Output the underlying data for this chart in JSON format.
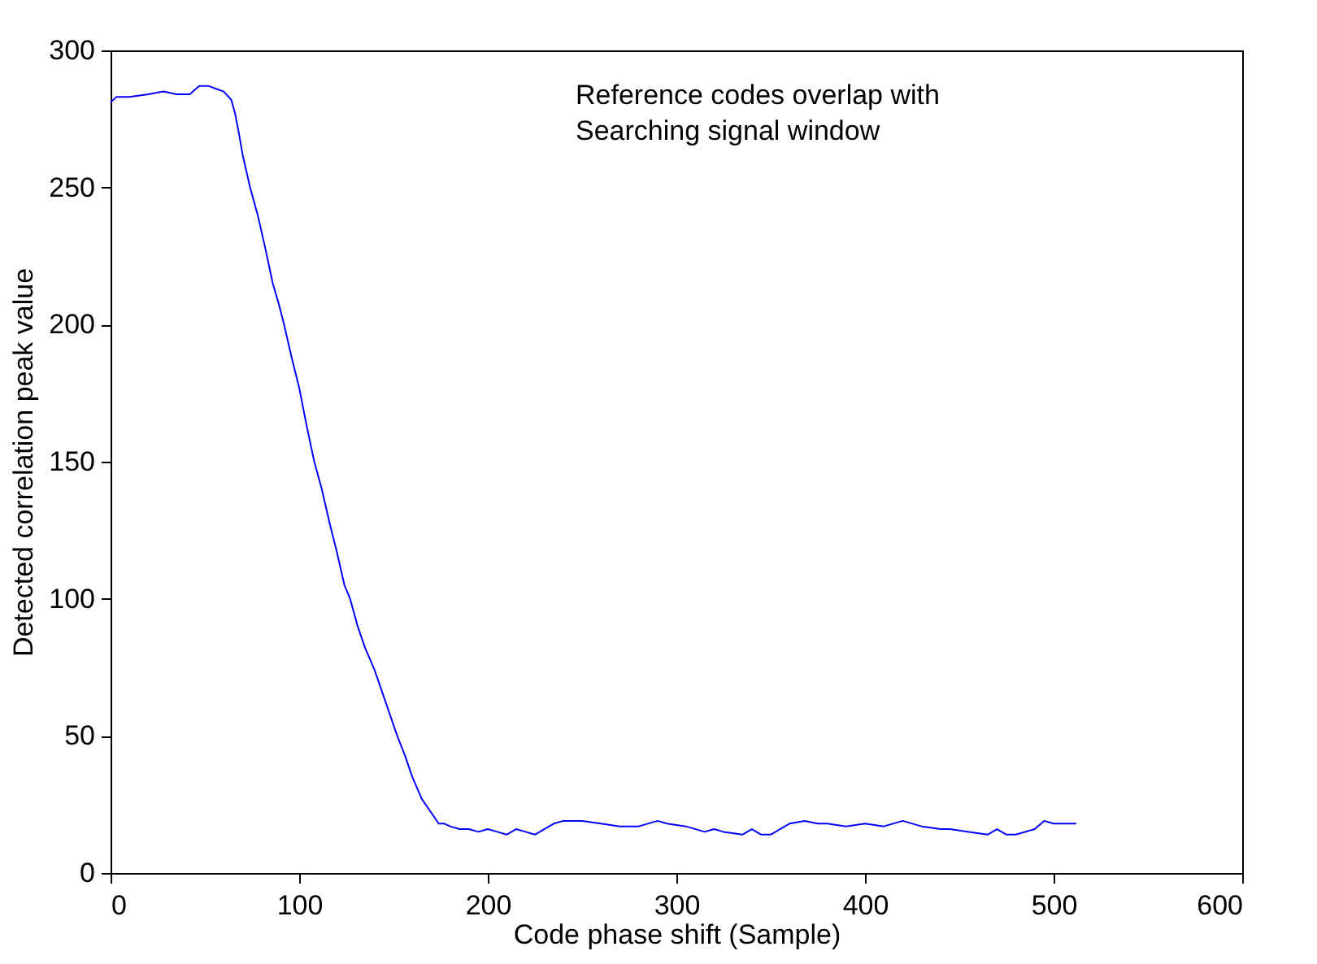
{
  "chart_data": {
    "type": "line",
    "xlabel": "Code phase shift  (Sample)",
    "ylabel": "Detected correlation peak value",
    "annotations": [
      "Reference codes overlap with\nSearching signal window"
    ],
    "x": [
      0,
      3,
      10,
      20,
      28,
      35,
      42,
      47,
      52,
      56,
      60,
      64,
      66,
      68,
      70,
      74,
      78,
      82,
      86,
      89,
      92,
      96,
      100,
      104,
      108,
      112,
      116,
      120,
      124,
      127,
      131,
      135,
      140,
      145,
      148,
      152,
      156,
      160,
      165,
      170,
      174,
      177,
      180,
      185,
      190,
      195,
      200,
      205,
      210,
      215,
      220,
      225,
      230,
      235,
      240,
      250,
      260,
      270,
      280,
      290,
      295,
      305,
      315,
      320,
      325,
      335,
      340,
      345,
      350,
      360,
      368,
      375,
      380,
      390,
      400,
      410,
      420,
      430,
      440,
      445,
      455,
      465,
      470,
      475,
      480,
      490,
      495,
      500,
      505,
      512
    ],
    "values": [
      281,
      283,
      283,
      284,
      285,
      284,
      284,
      287,
      287,
      286,
      285,
      282,
      277,
      270,
      262,
      250,
      240,
      228,
      215,
      208,
      200,
      188,
      177,
      163,
      150,
      140,
      128,
      117,
      105,
      100,
      90,
      82,
      74,
      64,
      58,
      50,
      43,
      35,
      27,
      22,
      18,
      18,
      17,
      16,
      16,
      15,
      16,
      15,
      14,
      16,
      15,
      14,
      16,
      18,
      19,
      19,
      18,
      17,
      17,
      19,
      18,
      17,
      15,
      16,
      15,
      14,
      16,
      14,
      14,
      18,
      19,
      18,
      18,
      17,
      18,
      17,
      19,
      17,
      16,
      16,
      15,
      14,
      16,
      14,
      14,
      16,
      19,
      18,
      18,
      18
    ],
    "color": "#0000ff",
    "xlim": [
      0,
      600
    ],
    "xticks": [
      0,
      100,
      200,
      300,
      400,
      500,
      600
    ],
    "ylim": [
      0,
      300
    ],
    "yticks": [
      0,
      50,
      100,
      150,
      200,
      250,
      300
    ],
    "grid": false,
    "marker": "none",
    "line_style": "solid"
  }
}
